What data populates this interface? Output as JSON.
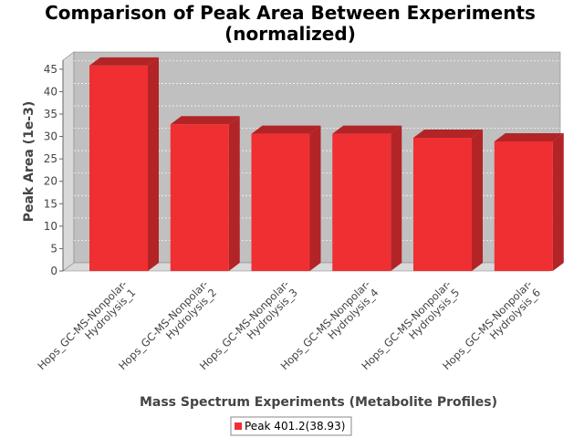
{
  "chart_data": {
    "type": "bar",
    "title_line1": "Comparison of Peak Area Between Experiments",
    "title_line2": "(normalized)",
    "xlabel": "Mass Spectrum Experiments (Metabolite Profiles)",
    "ylabel": "Peak Area (1e-3)",
    "ylim": [
      0,
      47
    ],
    "yticks": [
      0,
      5,
      10,
      15,
      20,
      25,
      30,
      35,
      40,
      45
    ],
    "grid": true,
    "legend_position": "bottom",
    "categories": [
      [
        "Hops_GC-MS-Nonpolar-",
        "Hydrolysis_1"
      ],
      [
        "Hops_GC-MS-Nonpolar-",
        "Hydrolysis_2"
      ],
      [
        "Hops_GC-MS-Nonpolar-",
        "Hydrolysis_3"
      ],
      [
        "Hops_GC-MS-Nonpolar-",
        "Hydrolysis_4"
      ],
      [
        "Hops_GC-MS-Nonpolar-",
        "Hydrolysis_5"
      ],
      [
        "Hops_GC-MS-Nonpolar-",
        "Hydrolysis_6"
      ]
    ],
    "series": [
      {
        "name": "Peak 401.2(38.93)",
        "values": [
          45.8,
          32.7,
          30.6,
          30.6,
          29.7,
          28.9
        ]
      }
    ],
    "colors": {
      "bar_front": "#ef2f32",
      "bar_top": "#b32426",
      "bar_side": "#b32426",
      "plot_bg": "#c0c0c0",
      "wall_side": "#d9d9d9",
      "floor": "#d9d9d9"
    }
  }
}
